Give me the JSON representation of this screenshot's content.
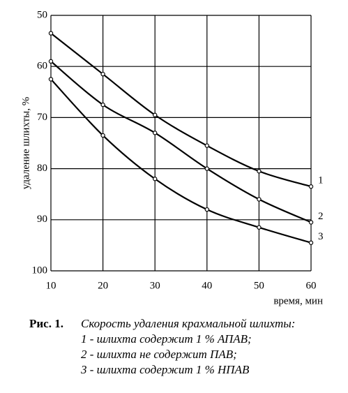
{
  "chart_data": {
    "type": "line",
    "x_label": "время, мин",
    "y_label": "удаление шлихты, %",
    "x": [
      10,
      20,
      30,
      40,
      50,
      60
    ],
    "series": [
      {
        "name": "1",
        "color": "#000000",
        "values": [
          53.5,
          61.5,
          69.5,
          75.5,
          80.5,
          83.5
        ]
      },
      {
        "name": "2",
        "color": "#000000",
        "values": [
          59,
          67.5,
          73,
          80,
          86,
          90.5
        ]
      },
      {
        "name": "3",
        "color": "#000000",
        "values": [
          62.5,
          73.5,
          82,
          88,
          91.5,
          94.5
        ]
      }
    ],
    "xlim": [
      10,
      60
    ],
    "xticks": [
      10,
      20,
      30,
      40,
      50,
      60
    ],
    "ylim": [
      50,
      100
    ],
    "yticks": [
      50,
      60,
      70,
      80,
      90,
      100
    ],
    "y_inverted": true,
    "grid": true,
    "caption": {
      "label": "Рис. 1.",
      "title": "Скорость удаления крахмальной шлихты:",
      "lines": [
        "1 - шлихта содержит 1 % АПАВ;",
        "2 - шлихта не содержит ПАВ;",
        "3 - шлихта содержит 1 % НПАВ"
      ]
    }
  }
}
